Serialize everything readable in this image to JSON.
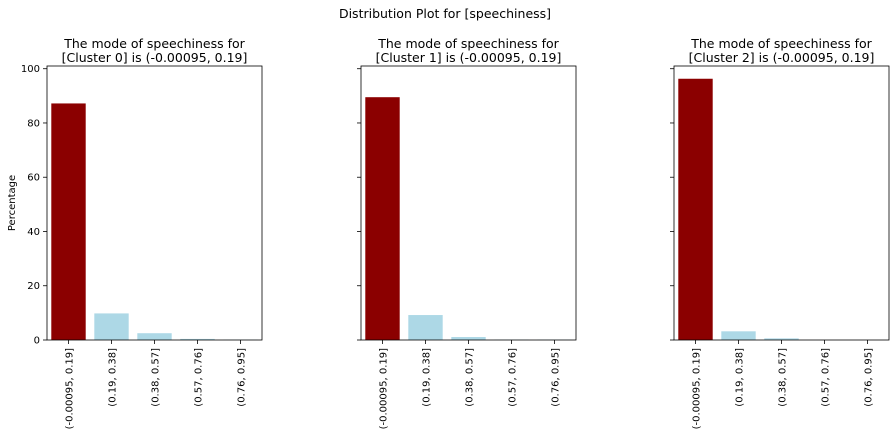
{
  "suptitle": "Distribution Plot for [speechiness]",
  "colors": {
    "mode_bar": "#8b0000",
    "other_bar": "#add8e6",
    "axis": "#000000"
  },
  "chart_data": [
    {
      "type": "bar",
      "title_lines": [
        "The mode of speechiness for",
        "[Cluster 0] is (-0.00095, 0.19]"
      ],
      "categories": [
        "(-0.00095, 0.19]",
        "(0.19, 0.38]",
        "(0.38, 0.57]",
        "(0.57, 0.76]",
        "(0.76, 0.95]"
      ],
      "values": [
        87.2,
        9.8,
        2.5,
        0.4,
        0.1
      ],
      "mode_index": 0,
      "ylabel": "Percentage",
      "ylim": [
        0,
        101
      ],
      "yticks": [
        0,
        20,
        40,
        60,
        80,
        100
      ],
      "show_ytick_labels": true
    },
    {
      "type": "bar",
      "title_lines": [
        "The mode of speechiness for",
        "[Cluster 1] is (-0.00095, 0.19]"
      ],
      "categories": [
        "(-0.00095, 0.19]",
        "(0.19, 0.38]",
        "(0.38, 0.57]",
        "(0.57, 0.76]",
        "(0.76, 0.95]"
      ],
      "values": [
        89.5,
        9.2,
        1.1,
        0.1,
        0.1
      ],
      "mode_index": 0,
      "ylabel": "",
      "ylim": [
        0,
        101
      ],
      "yticks": [
        0,
        20,
        40,
        60,
        80,
        100
      ],
      "show_ytick_labels": false
    },
    {
      "type": "bar",
      "title_lines": [
        "The mode of speechiness for",
        "[Cluster 2] is (-0.00095, 0.19]"
      ],
      "categories": [
        "(-0.00095, 0.19]",
        "(0.19, 0.38]",
        "(0.38, 0.57]",
        "(0.57, 0.76]",
        "(0.76, 0.95]"
      ],
      "values": [
        96.3,
        3.2,
        0.6,
        0.0,
        0.0
      ],
      "mode_index": 0,
      "ylabel": "",
      "ylim": [
        0,
        101
      ],
      "yticks": [
        0,
        20,
        40,
        60,
        80,
        100
      ],
      "show_ytick_labels": false
    }
  ]
}
